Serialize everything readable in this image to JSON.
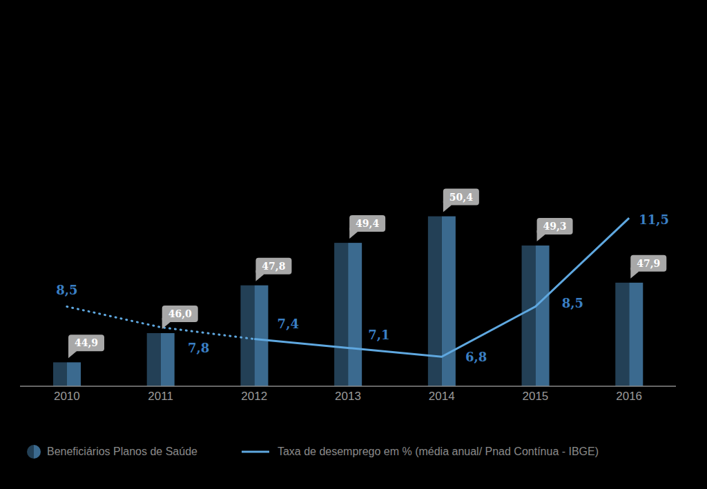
{
  "chart_data": {
    "type": "bar",
    "categories": [
      "2010",
      "2011",
      "2012",
      "2013",
      "2014",
      "2015",
      "2016"
    ],
    "series": [
      {
        "name": "Beneficiários Planos de Saúde",
        "type": "bar",
        "color": "#3b6a8f",
        "values": [
          44.9,
          46.0,
          47.8,
          49.4,
          50.4,
          49.3,
          47.9
        ],
        "value_labels": [
          "44,9",
          "46,0",
          "47,8",
          "49,4",
          "50,4",
          "49,3",
          "47,9"
        ]
      },
      {
        "name": "Taxa de desemprego em % (média anual/ Pnad Contínua - IBGE)",
        "type": "line",
        "axis": "y2",
        "color": "#5fa8e0",
        "values": [
          8.5,
          7.8,
          7.4,
          7.1,
          6.8,
          8.5,
          11.5
        ],
        "value_labels": [
          "8,5",
          "7,8",
          "7,4",
          "7,1",
          "6,8",
          "8,5",
          "11,5"
        ]
      }
    ],
    "ylim": [
      44,
      54
    ],
    "yticks": [
      44,
      54
    ],
    "y2lim": [
      5.8,
      14.8
    ],
    "y2ticks": [
      5.8,
      14.8
    ],
    "data_labels": true,
    "tick_labels": "x",
    "legend": "bottom",
    "grid": false
  }
}
